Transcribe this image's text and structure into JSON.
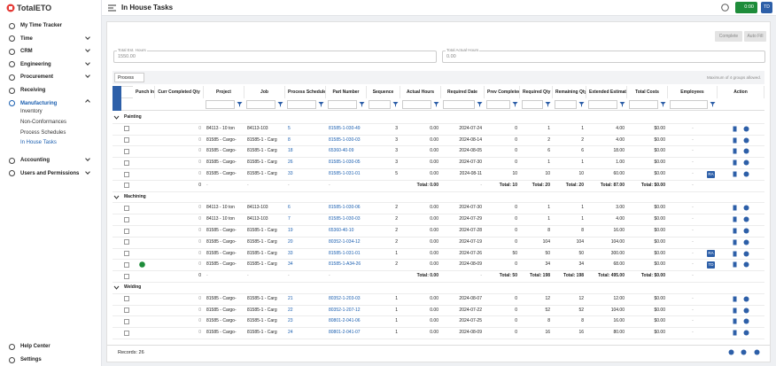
{
  "app": {
    "logo": "TotalETO",
    "page_title": "In House Tasks",
    "timer": "0:00",
    "avatar": "TD"
  },
  "nav": [
    {
      "label": "My Time Tracker",
      "chevron": false
    },
    {
      "label": "Time",
      "chevron": true
    },
    {
      "label": "CRM",
      "chevron": true
    },
    {
      "label": "Engineering",
      "chevron": true
    },
    {
      "label": "Procurement",
      "chevron": true
    },
    {
      "label": "Receiving",
      "chevron": false
    },
    {
      "label": "Manufacturing",
      "chevron": true,
      "active": true,
      "children": [
        "Inventory",
        "Non-Conformances",
        "Process Schedules",
        "In House Tasks"
      ],
      "current_child": 3
    },
    {
      "label": "Accounting",
      "chevron": true
    },
    {
      "label": "Users and Permissions",
      "chevron": true
    }
  ],
  "nav_bottom": [
    "Help Center",
    "Settings"
  ],
  "toolbar": {
    "buttons": [
      "Complete",
      "Auto Fill"
    ],
    "fields": [
      {
        "label": "Total Est. Hours",
        "value": "1550.00"
      },
      {
        "label": "Total Actual Hours",
        "value": "0.00"
      }
    ],
    "group_chip": "Process",
    "group_note": "Maximum of 4 groups allowed."
  },
  "table": {
    "columns": [
      "Punch In",
      "Curr Completed Qty",
      "Project",
      "Job",
      "Process Schedule",
      "Part Number",
      "Sequence",
      "Actual Hours",
      "Required Date",
      "Prev Completed",
      "Required Qty",
      "Remaining Qty",
      "Extended Estimate",
      "Total Costs",
      "Employees",
      "Action"
    ],
    "groups": [
      {
        "name": "Painting",
        "rows": [
          {
            "cells": [
              "0",
              "84113 - 10 ton",
              "84113-103",
              "5",
              "81585-1-030-49",
              "3",
              "0.00",
              "2024-07-24",
              "0",
              "1",
              "1",
              "4.00",
              "$0.00",
              "-"
            ]
          },
          {
            "cells": [
              "0",
              "81585 - Cargo-",
              "81585-1 - Carg",
              "8",
              "81585-1-030-03",
              "3",
              "0.00",
              "2024-08-14",
              "0",
              "2",
              "2",
              "4.00",
              "$0.00",
              "-"
            ]
          },
          {
            "cells": [
              "0",
              "81585 - Cargo-",
              "81585-1 - Carg",
              "18",
              "65360-40-09",
              "3",
              "0.00",
              "2024-08-05",
              "0",
              "6",
              "6",
              "18.00",
              "$0.00",
              "-"
            ]
          },
          {
            "cells": [
              "0",
              "81585 - Cargo-",
              "81585-1 - Carg",
              "26",
              "81585-1-030-05",
              "3",
              "0.00",
              "2024-07-30",
              "0",
              "1",
              "1",
              "1.00",
              "$0.00",
              "-"
            ]
          },
          {
            "cells": [
              "0",
              "81585 - Cargo-",
              "81585-1 - Carg",
              "33",
              "81585-1-031-01",
              "5",
              "0.00",
              "2024-08-11",
              "10",
              "10",
              "10",
              "60.00",
              "$0.00",
              "-"
            ],
            "badge": "RA"
          }
        ],
        "totals": [
          "0",
          "-",
          "-",
          "-",
          "-",
          "",
          "Total: 0.00",
          "-",
          "Total: 10",
          "Total: 20",
          "Total: 20",
          "Total: 87.00",
          "Total: $0.00",
          "-"
        ]
      },
      {
        "name": "Machining",
        "rows": [
          {
            "cells": [
              "0",
              "84113 - 10 ton",
              "84113-103",
              "6",
              "81585-1-030-06",
              "2",
              "0.00",
              "2024-07-30",
              "0",
              "1",
              "1",
              "3.00",
              "$0.00",
              "-"
            ]
          },
          {
            "cells": [
              "0",
              "84113 - 10 ton",
              "84113-103",
              "7",
              "81585-1-030-03",
              "2",
              "0.00",
              "2024-07-29",
              "0",
              "1",
              "1",
              "4.00",
              "$0.00",
              "-"
            ]
          },
          {
            "cells": [
              "0",
              "81585 - Cargo-",
              "81585-1 - Carg",
              "19",
              "65360-40-10",
              "2",
              "0.00",
              "2024-07-28",
              "0",
              "8",
              "8",
              "16.00",
              "$0.00",
              "-"
            ]
          },
          {
            "cells": [
              "0",
              "81585 - Cargo-",
              "81585-1 - Carg",
              "20",
              "80352-1-034-12",
              "2",
              "0.00",
              "2024-07-19",
              "0",
              "104",
              "104",
              "104.00",
              "$0.00",
              "-"
            ]
          },
          {
            "cells": [
              "0",
              "81585 - Cargo-",
              "81585-1 - Carg",
              "33",
              "81585-1-031-01",
              "1",
              "0.00",
              "2024-07-26",
              "50",
              "50",
              "50",
              "300.00",
              "$0.00",
              "-"
            ],
            "badge": "RA"
          },
          {
            "cells": [
              "0",
              "81585 - Cargo-",
              "81585-1 - Carg",
              "34",
              "81585-1-A34-26",
              "2",
              "0.00",
              "2024-08-09",
              "0",
              "34",
              "34",
              "68.00",
              "$0.00",
              "-"
            ],
            "badge": "TD",
            "punched_in": true
          }
        ],
        "totals": [
          "0",
          "-",
          "-",
          "-",
          "-",
          "",
          "Total: 0.00",
          "-",
          "Total: 50",
          "Total: 198",
          "Total: 198",
          "Total: 495.00",
          "Total: $0.00",
          "-"
        ]
      },
      {
        "name": "Welding",
        "rows": [
          {
            "cells": [
              "0",
              "81585 - Cargo-",
              "81585-1 - Carg",
              "21",
              "80352-1-203-03",
              "1",
              "0.00",
              "2024-08-07",
              "0",
              "12",
              "12",
              "12.00",
              "$0.00",
              "-"
            ]
          },
          {
            "cells": [
              "0",
              "81585 - Cargo-",
              "81585-1 - Carg",
              "22",
              "80352-1-207-12",
              "1",
              "0.00",
              "2024-07-22",
              "0",
              "52",
              "52",
              "104.00",
              "$0.00",
              "-"
            ]
          },
          {
            "cells": [
              "0",
              "81585 - Cargo-",
              "81585-1 - Carg",
              "23",
              "80801-2-041-06",
              "1",
              "0.00",
              "2024-07-25",
              "0",
              "8",
              "8",
              "16.00",
              "$0.00",
              "-"
            ]
          },
          {
            "cells": [
              "0",
              "81585 - Cargo-",
              "81585-1 - Carg",
              "24",
              "80801-2-041-07",
              "1",
              "0.00",
              "2024-08-09",
              "0",
              "16",
              "16",
              "80.00",
              "$0.00",
              "-"
            ]
          }
        ]
      }
    ]
  },
  "footer": {
    "records": "Records: 26"
  }
}
